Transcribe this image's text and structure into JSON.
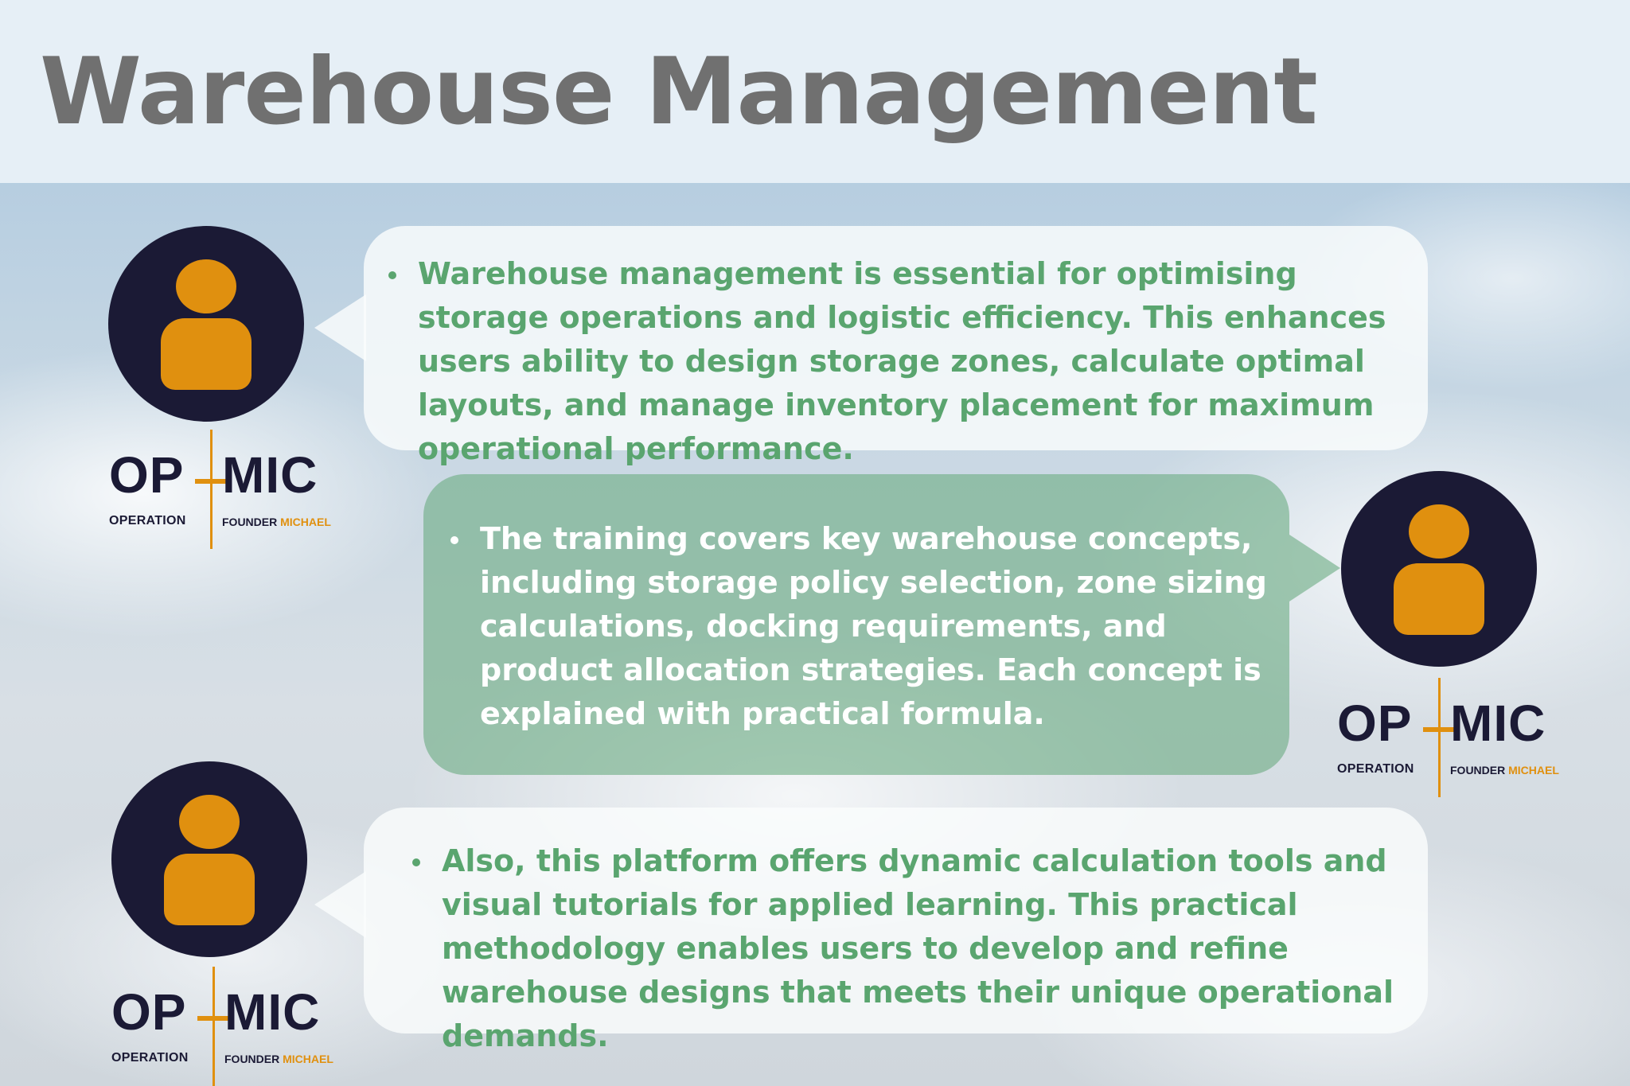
{
  "title": "Warehouse Management",
  "colors": {
    "navy": "#1b1a35",
    "orange": "#e0900f",
    "green_text": "#5aa56f",
    "title_gray": "#707070",
    "header_bg": "#e6eff6"
  },
  "logo": {
    "left_word": "OP",
    "right_word": "MIC",
    "sub_left": "OPERATION",
    "sub_right_prefix": "FOUNDER",
    "sub_right_accent": "MICHAEL"
  },
  "icons": {
    "avatar": "person-icon"
  },
  "bubbles": [
    {
      "text": "Warehouse management is essential for optimising storage operations and logistic efficiency. This enhances users ability to design storage zones, calculate optimal layouts, and manage inventory placement for maximum operational performance."
    },
    {
      "text": "The training covers key warehouse concepts, including storage policy selection, zone sizing calculations, docking requirements, and product allocation strategies. Each concept is explained with practical formula."
    },
    {
      "text": "Also, this platform offers dynamic calculation tools and visual tutorials for applied learning. This practical methodology enables users to develop and refine warehouse designs that meets their unique operational demands."
    }
  ]
}
